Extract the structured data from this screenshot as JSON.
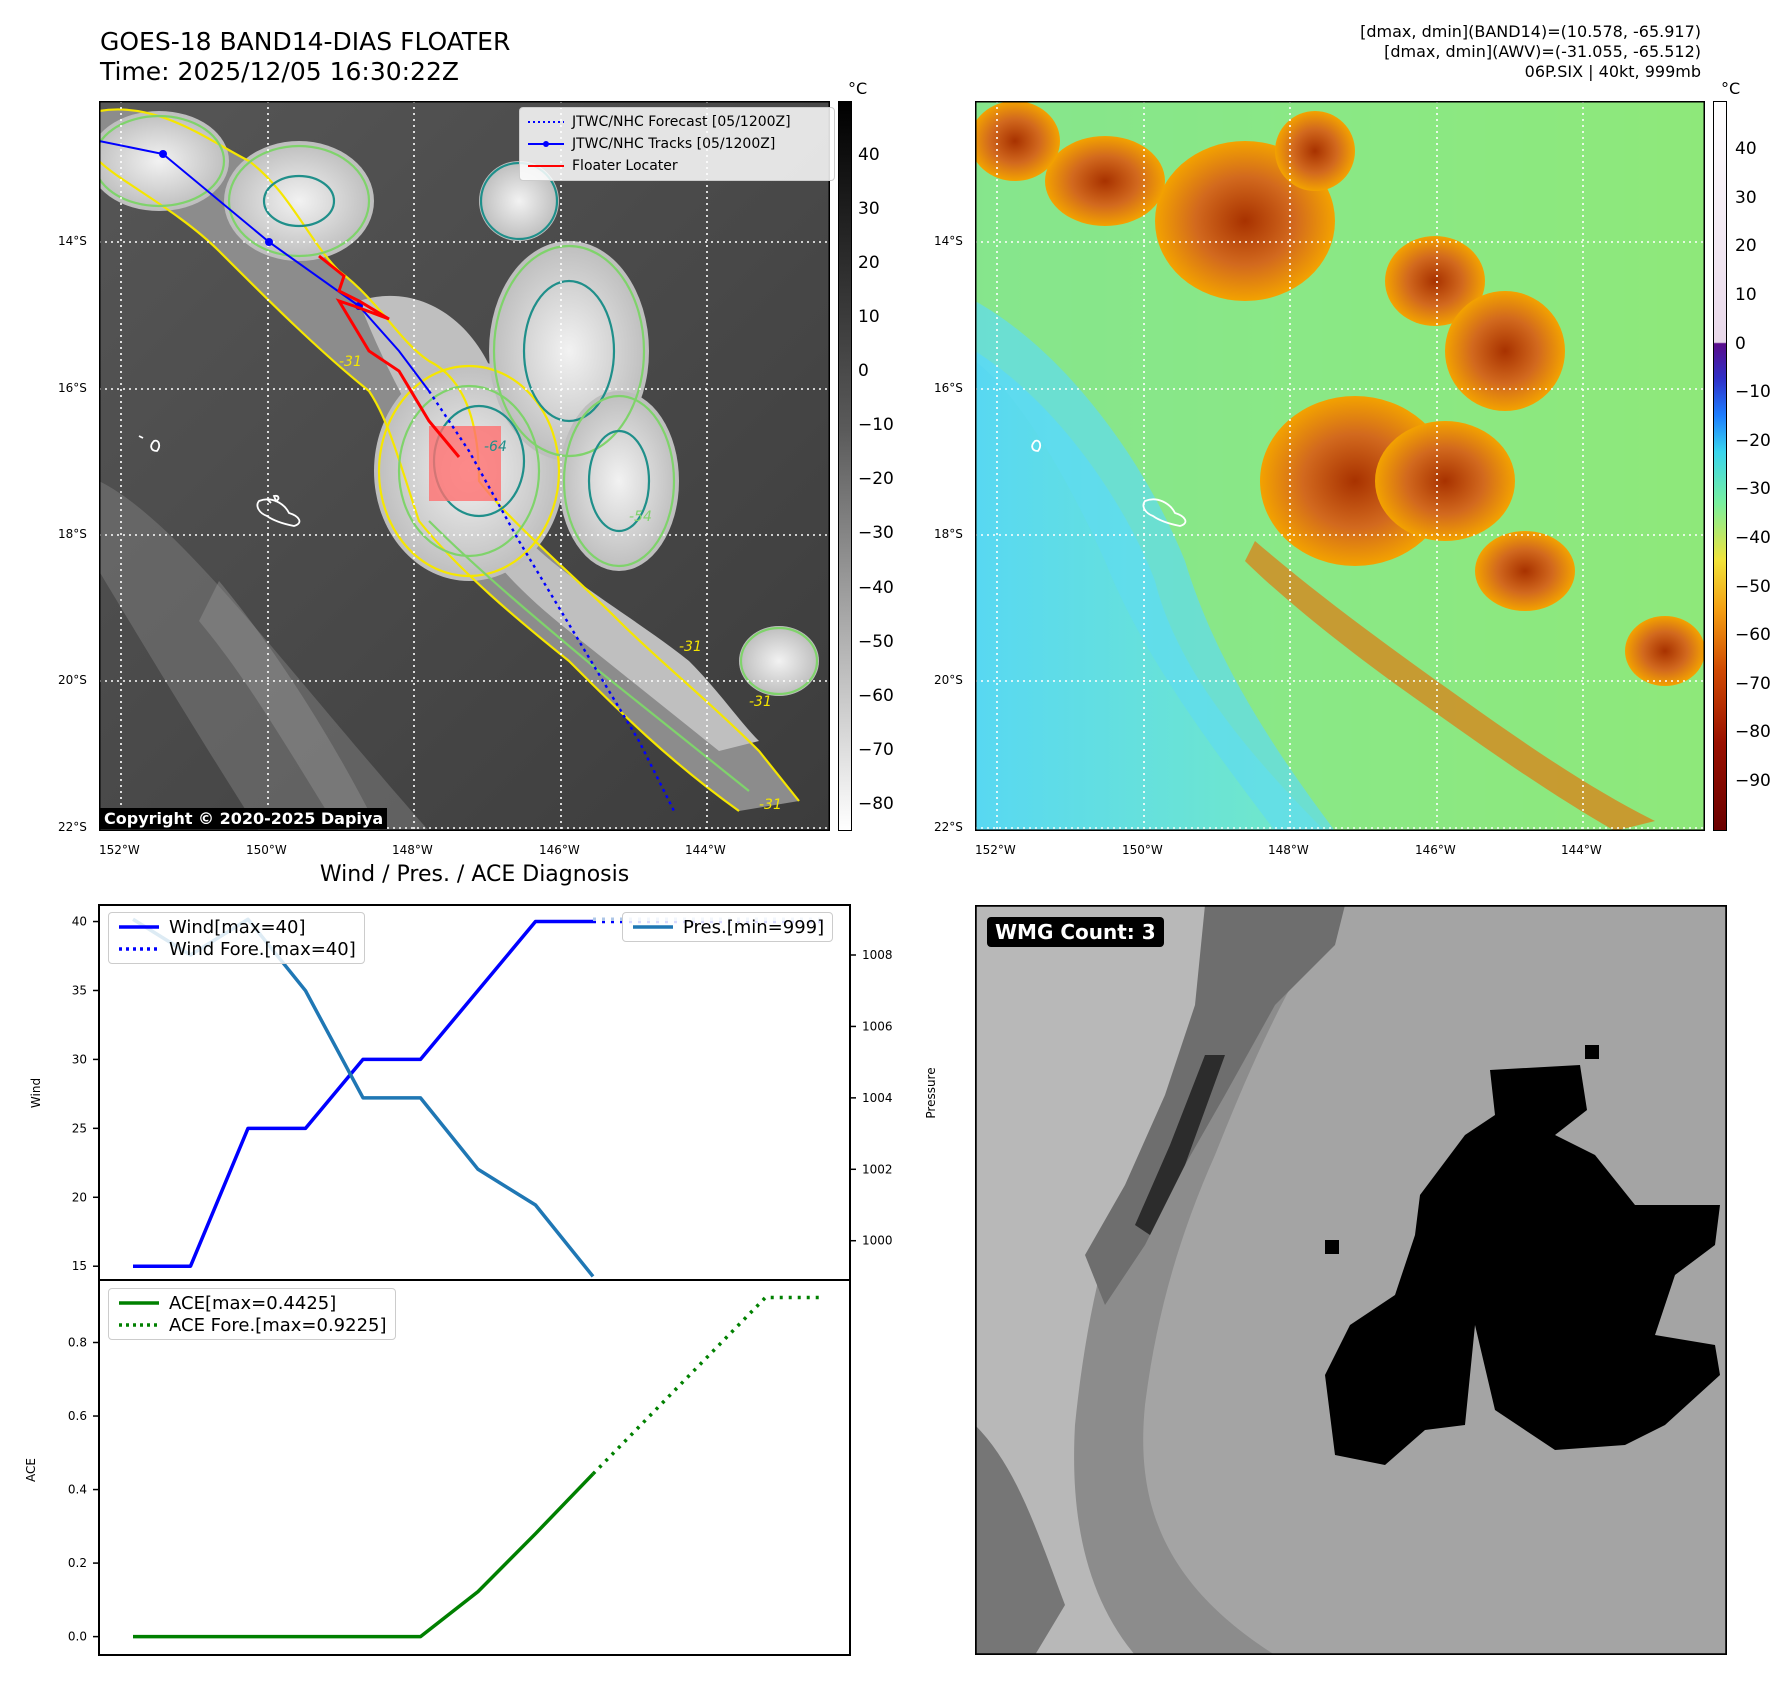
{
  "header": {
    "title_line1": "GOES-18 BAND14-DIAS FLOATER",
    "title_line2": "Time: 2025/12/05 16:30:22Z",
    "info_line1": "[dmax, dmin](BAND14)=(10.578, -65.917)",
    "info_line2": "[dmax, dmin](AWV)=(-31.055, -65.512)",
    "info_line3": "06P.SIX | 40kt, 999mb"
  },
  "map": {
    "lat_ticks": [
      "14°S",
      "16°S",
      "18°S",
      "20°S",
      "22°S"
    ],
    "lon_ticks": [
      "152°W",
      "150°W",
      "148°W",
      "146°W",
      "144°W"
    ],
    "copyright": "Copyright © 2020-2025 Dapiya",
    "legend": [
      {
        "label": "JTWC/NHC Forecast [05/1200Z]",
        "color": "#0000ff",
        "style": "dotted"
      },
      {
        "label": "JTWC/NHC Tracks [05/1200Z]",
        "color": "#0000ff",
        "style": "solid-marker"
      },
      {
        "label": "Floater Locater",
        "color": "#ff0000",
        "style": "solid"
      }
    ],
    "contour_labels": [
      "-64",
      "-31",
      "-31",
      "-54",
      "-31",
      "-31"
    ],
    "cbar_unit": "°C",
    "cbar_gray_ticks": [
      "40",
      "30",
      "20",
      "10",
      "0",
      "−10",
      "−20",
      "−30",
      "−40",
      "−50",
      "−60",
      "−70",
      "−80"
    ],
    "cbar_color_ticks": [
      "40",
      "30",
      "20",
      "10",
      "0",
      "−10",
      "−20",
      "−30",
      "−40",
      "−50",
      "−60",
      "−70",
      "−80",
      "−90"
    ],
    "colors": {
      "gray_cloud": "#e6e6e6",
      "gray_sea": "#4a4a4a",
      "contour_yellow": "#f5e600",
      "contour_green": "#7fd36b",
      "contour_teal": "#1f8f8a"
    }
  },
  "diagnosis": {
    "title": "Wind / Pres. / ACE Diagnosis",
    "legend_wind": "Wind[max=40]",
    "legend_wind_fore": "Wind Fore.[max=40]",
    "legend_pres": "Pres.[min=999]",
    "legend_ace": "ACE[max=0.4425]",
    "legend_ace_fore": "ACE Fore.[max=0.9225]",
    "ylabel_wind": "Wind",
    "ylabel_pres": "Pressure",
    "ylabel_ace": "ACE",
    "wmg_label": "WMG Count: 3"
  },
  "chart_data": [
    {
      "type": "line",
      "title": "Wind / Pres. / ACE Diagnosis",
      "ylabel": "Wind",
      "ylim": [
        14,
        41.2
      ],
      "yticks": [
        15,
        20,
        25,
        30,
        35,
        40
      ],
      "y2label": "Pressure",
      "y2lim": [
        998.9,
        1009.4
      ],
      "y2ticks": [
        1000,
        1002,
        1004,
        1006,
        1008
      ],
      "series": [
        {
          "name": "Wind[max=40]",
          "axis": "left",
          "color": "#0000ff",
          "style": "solid",
          "x": [
            0,
            1,
            2,
            3,
            4,
            5,
            6,
            7,
            8
          ],
          "values": [
            15,
            15,
            25,
            25,
            30,
            30,
            35,
            40,
            40
          ]
        },
        {
          "name": "Wind Fore.[max=40]",
          "axis": "left",
          "color": "#0000ff",
          "style": "dotted",
          "x": [
            8,
            9,
            10,
            11,
            12
          ],
          "values": [
            40,
            40,
            40,
            40,
            40
          ]
        },
        {
          "name": "Pres.[min=999]",
          "axis": "right",
          "color": "#1f77b4",
          "style": "solid",
          "x": [
            0,
            1,
            2,
            3,
            4,
            5,
            6,
            7,
            8
          ],
          "values": [
            1009,
            1008,
            1009,
            1007,
            1004,
            1004,
            1002,
            1001,
            999
          ]
        },
        {
          "name": "",
          "axis": "right",
          "color": "#aec7e8",
          "style": "dotted",
          "x": [
            8,
            9,
            10,
            11,
            12
          ],
          "values": [
            1009,
            1009,
            1009,
            1009,
            1009
          ]
        }
      ]
    },
    {
      "type": "line",
      "ylabel": "ACE",
      "ylim": [
        -0.05,
        0.97
      ],
      "yticks": [
        0.0,
        0.2,
        0.4,
        0.6,
        0.8
      ],
      "series": [
        {
          "name": "ACE[max=0.4425]",
          "color": "#008000",
          "style": "solid",
          "x": [
            0,
            1,
            2,
            3,
            4,
            5,
            6,
            7,
            8
          ],
          "values": [
            0,
            0,
            0,
            0,
            0,
            0,
            0.1225,
            0.28,
            0.4425
          ]
        },
        {
          "name": "ACE Fore.[max=0.9225]",
          "color": "#008000",
          "style": "dotted",
          "x": [
            8,
            9,
            10,
            11,
            12
          ],
          "values": [
            0.4425,
            0.6025,
            0.7625,
            0.9225,
            0.9225
          ]
        }
      ]
    }
  ]
}
